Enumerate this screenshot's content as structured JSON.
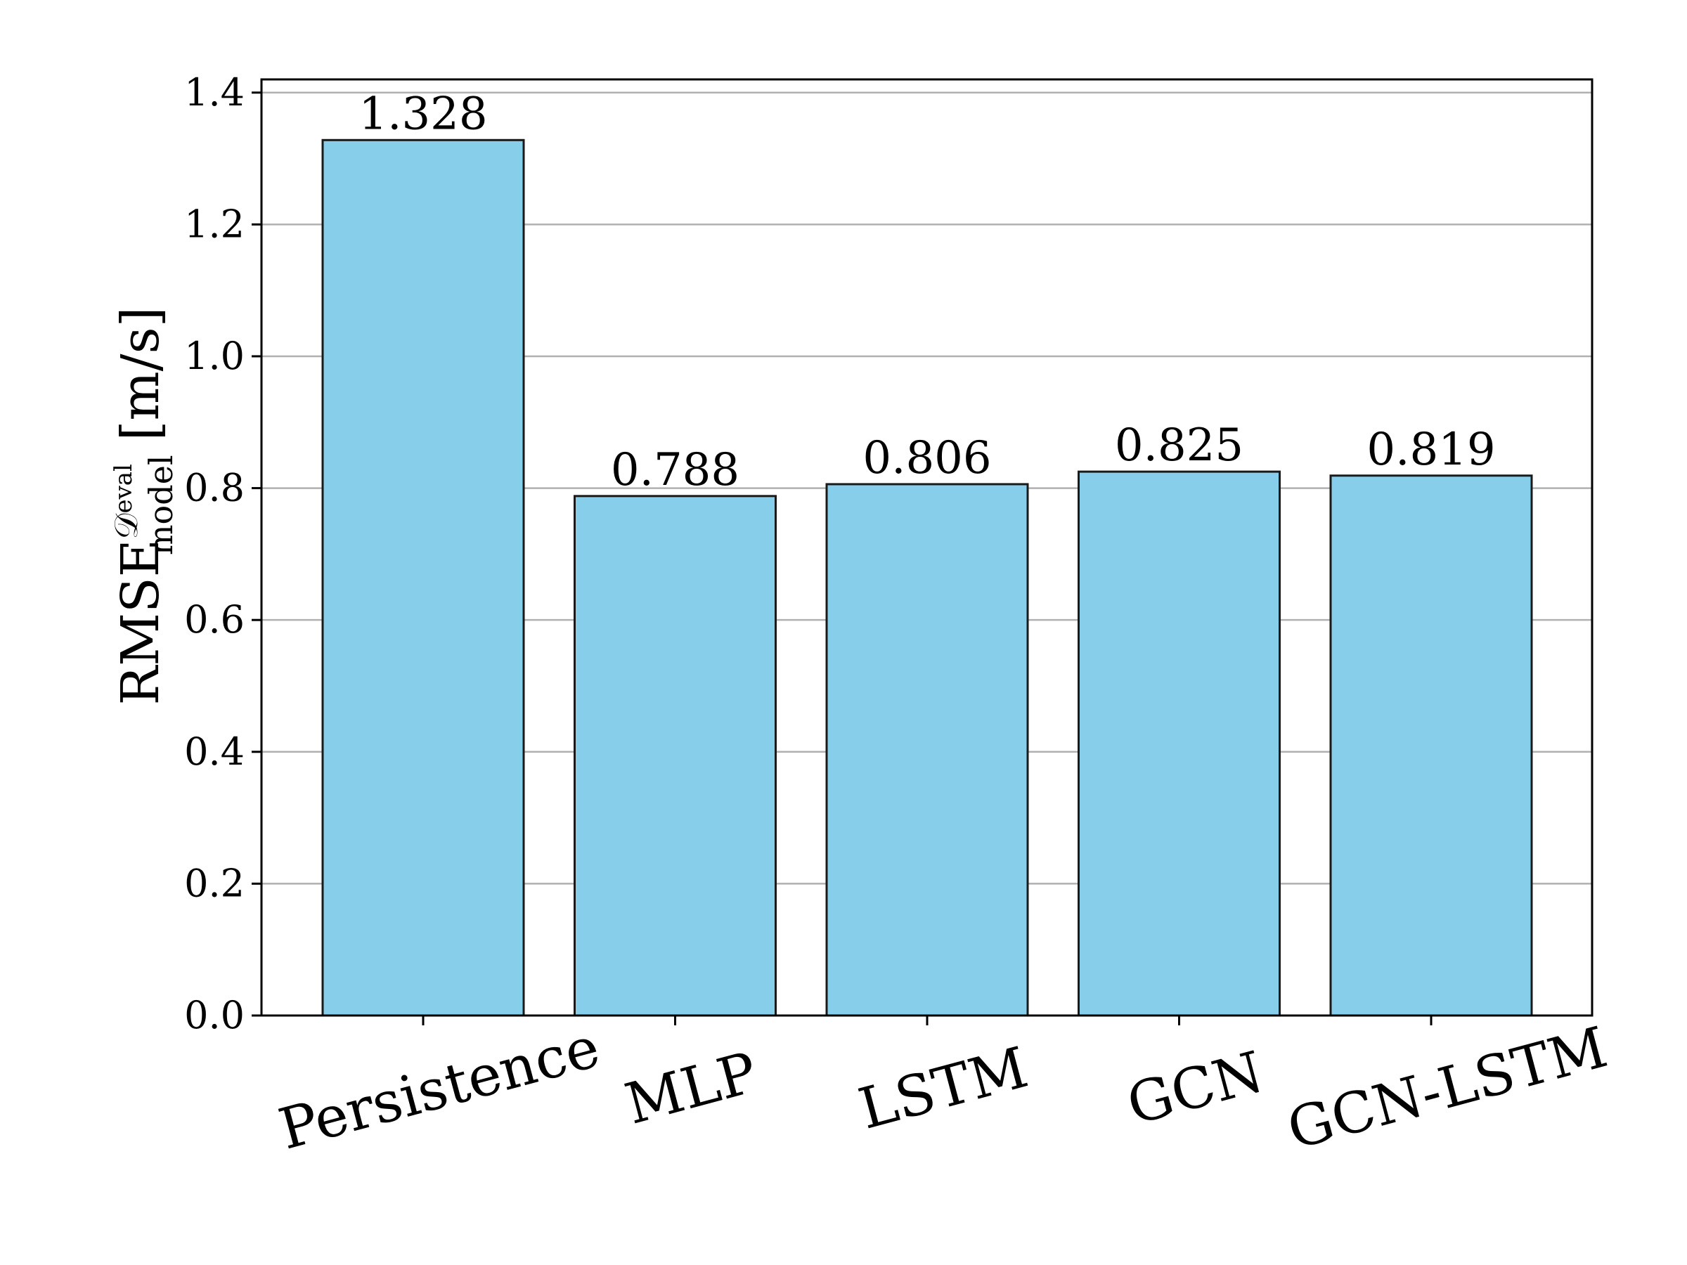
{
  "chart_data": {
    "type": "bar",
    "title": "",
    "xlabel": "",
    "ylabel": {
      "base": "RMSE",
      "superscript_symbol": "𝒟",
      "superscript_subscript": "eval",
      "subscript": "model",
      "unit": "[m/s]"
    },
    "categories": [
      "Persistence",
      "MLP",
      "LSTM",
      "GCN",
      "GCN-LSTM"
    ],
    "values": [
      1.328,
      0.788,
      0.806,
      0.825,
      0.819
    ],
    "value_labels": [
      "1.328",
      "0.788",
      "0.806",
      "0.825",
      "0.819"
    ],
    "ylim": [
      0,
      1.42
    ],
    "yticks": [
      0.0,
      0.2,
      0.4,
      0.6,
      0.8,
      1.0,
      1.2,
      1.4
    ],
    "ytick_labels": [
      "0.0",
      "0.2",
      "0.4",
      "0.6",
      "0.8",
      "1.0",
      "1.2",
      "1.4"
    ],
    "grid": "horizontal",
    "legend": "none",
    "colors": {
      "bar_fill": "#87ceeb",
      "bar_edge": "#1a1a1a",
      "grid": "#b0b0b0",
      "axis": "#000000"
    }
  }
}
